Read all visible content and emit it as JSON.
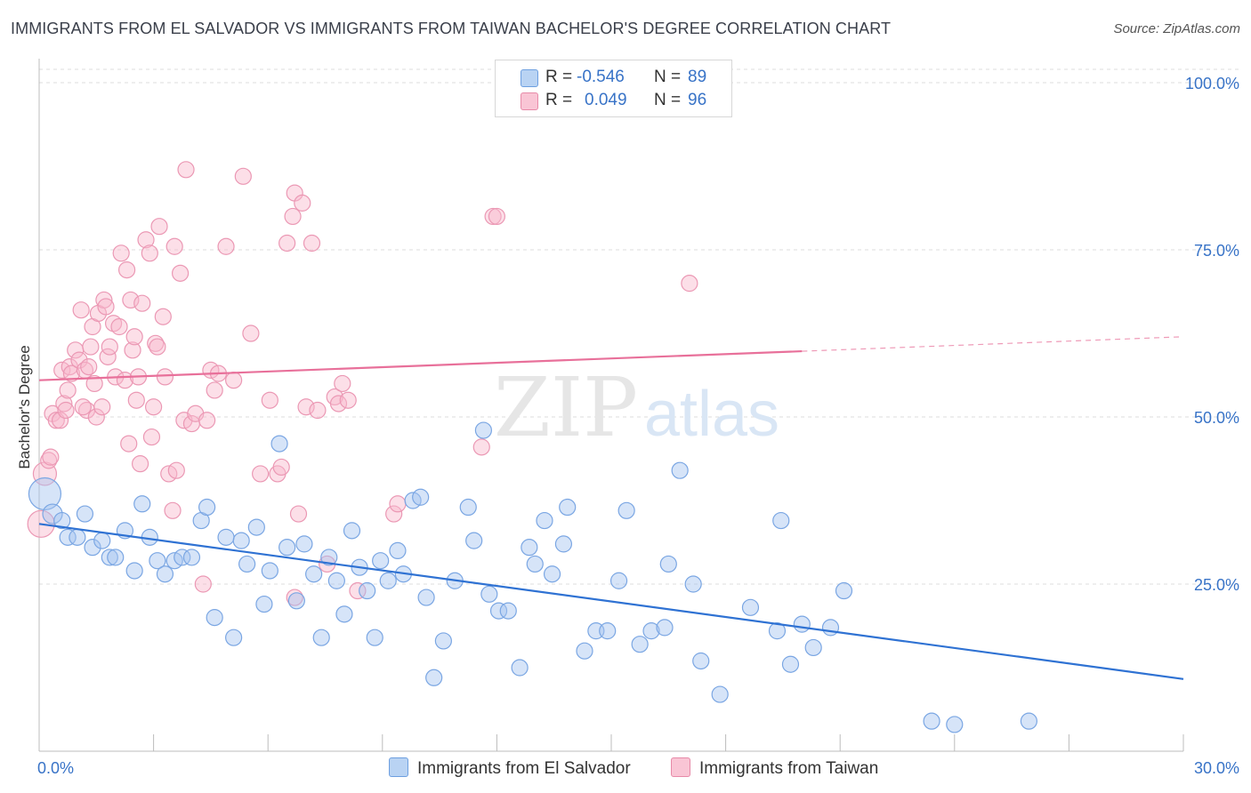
{
  "title": "IMMIGRANTS FROM EL SALVADOR VS IMMIGRANTS FROM TAIWAN BACHELOR'S DEGREE CORRELATION CHART",
  "source": "Source: ZipAtlas.com",
  "watermark": {
    "zip": "ZIP",
    "atlas": "atlas"
  },
  "legend": {
    "r_label": "R =",
    "n_label": "N =",
    "series": [
      {
        "name": "Immigrants from El Salvador",
        "r": "-0.546",
        "n": "89",
        "fill": "#b9d3f3",
        "stroke": "#6d9fe0"
      },
      {
        "name": "Immigrants from Taiwan",
        "r": "0.049",
        "n": "96",
        "fill": "#f9c5d5",
        "stroke": "#e78aa8"
      }
    ]
  },
  "colors": {
    "blue_point_fill": "rgba(164,196,240,0.45)",
    "blue_point_stroke": "#7aa6e3",
    "blue_line": "#2f72d3",
    "pink_point_fill": "rgba(248,183,203,0.45)",
    "pink_point_stroke": "#eb98b4",
    "pink_line": "#e8709a",
    "axis_text": "#3873c7",
    "grid": "#dcdcdc"
  },
  "chart_data": {
    "type": "scatter",
    "title": "IMMIGRANTS FROM EL SALVADOR VS IMMIGRANTS FROM TAIWAN BACHELOR'S DEGREE CORRELATION CHART",
    "xlabel": "",
    "ylabel": "Bachelor's Degree",
    "xlim": [
      0,
      30
    ],
    "ylim": [
      0,
      102
    ],
    "x_tick_labels": [
      {
        "value": 0,
        "label": "0.0%"
      },
      {
        "value": 30,
        "label": "30.0%"
      }
    ],
    "y_tick_labels": [
      {
        "value": 25,
        "label": "25.0%"
      },
      {
        "value": 50,
        "label": "50.0%"
      },
      {
        "value": 75,
        "label": "75.0%"
      },
      {
        "value": 100,
        "label": "100.0%"
      }
    ],
    "grid": true,
    "legend_position": "top-center",
    "series": [
      {
        "name": "Immigrants from El Salvador",
        "r": -0.546,
        "n": 89,
        "trend": {
          "x": [
            0,
            30
          ],
          "y": [
            34.0,
            10.8
          ],
          "solid_until": 30
        },
        "points": [
          [
            0.15,
            38.5,
            18
          ],
          [
            0.35,
            35.5,
            11
          ],
          [
            0.6,
            34.5,
            9
          ],
          [
            0.75,
            32.0,
            9
          ],
          [
            1.0,
            32.0,
            9
          ],
          [
            1.2,
            35.5,
            9
          ],
          [
            1.4,
            30.5,
            9
          ],
          [
            1.65,
            31.5,
            9
          ],
          [
            1.85,
            29.0,
            9
          ],
          [
            2.0,
            29.0,
            9
          ],
          [
            2.25,
            33.0,
            9
          ],
          [
            2.5,
            27.0,
            9
          ],
          [
            2.7,
            37.0,
            9
          ],
          [
            2.9,
            32.0,
            9
          ],
          [
            3.1,
            28.5,
            9
          ],
          [
            3.3,
            26.5,
            9
          ],
          [
            3.55,
            28.5,
            9
          ],
          [
            3.75,
            29.0,
            9
          ],
          [
            4.0,
            29.0,
            9
          ],
          [
            4.25,
            34.5,
            9
          ],
          [
            4.4,
            36.5,
            9
          ],
          [
            4.6,
            20.0,
            9
          ],
          [
            4.9,
            32.0,
            9
          ],
          [
            5.1,
            17.0,
            9
          ],
          [
            5.3,
            31.5,
            9
          ],
          [
            5.45,
            28.0,
            9
          ],
          [
            5.7,
            33.5,
            9
          ],
          [
            5.9,
            22.0,
            9
          ],
          [
            6.05,
            27.0,
            9
          ],
          [
            6.3,
            46.0,
            9
          ],
          [
            6.5,
            30.5,
            9
          ],
          [
            6.75,
            22.5,
            9
          ],
          [
            6.95,
            31.0,
            9
          ],
          [
            7.2,
            26.5,
            9
          ],
          [
            7.4,
            17.0,
            9
          ],
          [
            7.6,
            29.0,
            9
          ],
          [
            7.8,
            25.5,
            9
          ],
          [
            8.0,
            20.5,
            9
          ],
          [
            8.2,
            33.0,
            9
          ],
          [
            8.4,
            27.5,
            9
          ],
          [
            8.6,
            24.0,
            9
          ],
          [
            8.8,
            17.0,
            9
          ],
          [
            8.95,
            28.5,
            9
          ],
          [
            9.15,
            25.5,
            9
          ],
          [
            9.4,
            30.0,
            9
          ],
          [
            9.55,
            26.5,
            9
          ],
          [
            9.8,
            37.5,
            9
          ],
          [
            10.0,
            38.0,
            9
          ],
          [
            10.15,
            23.0,
            9
          ],
          [
            10.35,
            11.0,
            9
          ],
          [
            10.6,
            16.5,
            9
          ],
          [
            10.9,
            25.5,
            9
          ],
          [
            11.25,
            36.5,
            9
          ],
          [
            11.4,
            31.5,
            9
          ],
          [
            11.65,
            48.0,
            9
          ],
          [
            11.8,
            23.5,
            9
          ],
          [
            12.05,
            21.0,
            9
          ],
          [
            12.3,
            21.0,
            9
          ],
          [
            12.6,
            12.5,
            9
          ],
          [
            12.85,
            30.5,
            9
          ],
          [
            13.0,
            28.0,
            9
          ],
          [
            13.25,
            34.5,
            9
          ],
          [
            13.45,
            26.5,
            9
          ],
          [
            13.75,
            31.0,
            9
          ],
          [
            13.85,
            36.5,
            9
          ],
          [
            14.3,
            15.0,
            9
          ],
          [
            14.6,
            18.0,
            9
          ],
          [
            14.9,
            18.0,
            9
          ],
          [
            15.2,
            25.5,
            9
          ],
          [
            15.4,
            36.0,
            9
          ],
          [
            15.75,
            16.0,
            9
          ],
          [
            16.05,
            18.0,
            9
          ],
          [
            16.4,
            18.5,
            9
          ],
          [
            16.5,
            28.0,
            9
          ],
          [
            16.8,
            42.0,
            9
          ],
          [
            17.15,
            25.0,
            9
          ],
          [
            17.35,
            13.5,
            9
          ],
          [
            17.85,
            8.5,
            9
          ],
          [
            18.65,
            21.5,
            9
          ],
          [
            19.35,
            18.0,
            9
          ],
          [
            19.45,
            34.5,
            9
          ],
          [
            19.7,
            13.0,
            9
          ],
          [
            20.0,
            19.0,
            9
          ],
          [
            20.3,
            15.5,
            9
          ],
          [
            20.75,
            18.5,
            9
          ],
          [
            21.1,
            24.0,
            9
          ],
          [
            23.4,
            4.5,
            9
          ],
          [
            24.0,
            4.0,
            9
          ],
          [
            25.95,
            4.5,
            9
          ]
        ]
      },
      {
        "name": "Immigrants from Taiwan",
        "r": 0.049,
        "n": 96,
        "trend": {
          "x": [
            0,
            30
          ],
          "y": [
            55.5,
            62.0
          ],
          "solid_until": 20
        },
        "points": [
          [
            0.05,
            34.0,
            15
          ],
          [
            0.15,
            41.5,
            13
          ],
          [
            0.25,
            43.5,
            9
          ],
          [
            0.3,
            44.0,
            9
          ],
          [
            0.35,
            50.5,
            9
          ],
          [
            0.45,
            49.5,
            9
          ],
          [
            0.55,
            49.5,
            9
          ],
          [
            0.65,
            52.0,
            9
          ],
          [
            0.6,
            57.0,
            9
          ],
          [
            0.75,
            54.0,
            9
          ],
          [
            0.8,
            57.5,
            9
          ],
          [
            0.85,
            56.5,
            9
          ],
          [
            0.95,
            60.0,
            9
          ],
          [
            1.05,
            58.5,
            9
          ],
          [
            1.1,
            66.0,
            9
          ],
          [
            1.2,
            57.0,
            9
          ],
          [
            1.25,
            51.0,
            9
          ],
          [
            1.3,
            57.5,
            9
          ],
          [
            1.35,
            60.5,
            9
          ],
          [
            1.4,
            63.5,
            9
          ],
          [
            1.45,
            55.0,
            9
          ],
          [
            1.5,
            50.0,
            9
          ],
          [
            1.55,
            65.5,
            9
          ],
          [
            1.65,
            51.5,
            9
          ],
          [
            1.7,
            67.5,
            9
          ],
          [
            1.75,
            66.5,
            9
          ],
          [
            1.8,
            59.0,
            9
          ],
          [
            1.85,
            60.5,
            9
          ],
          [
            1.95,
            64.0,
            9
          ],
          [
            2.0,
            56.0,
            9
          ],
          [
            2.1,
            63.5,
            9
          ],
          [
            2.15,
            74.5,
            9
          ],
          [
            2.25,
            55.5,
            9
          ],
          [
            2.3,
            72.0,
            9
          ],
          [
            2.35,
            46.0,
            9
          ],
          [
            2.4,
            67.5,
            9
          ],
          [
            2.45,
            60.0,
            9
          ],
          [
            2.5,
            62.0,
            9
          ],
          [
            2.55,
            52.5,
            9
          ],
          [
            2.6,
            56.0,
            9
          ],
          [
            2.65,
            43.0,
            9
          ],
          [
            2.7,
            67.0,
            9
          ],
          [
            2.8,
            76.5,
            9
          ],
          [
            2.9,
            74.5,
            9
          ],
          [
            2.95,
            47.0,
            9
          ],
          [
            3.0,
            51.5,
            9
          ],
          [
            3.05,
            61.0,
            9
          ],
          [
            3.1,
            60.5,
            9
          ],
          [
            3.15,
            78.5,
            9
          ],
          [
            3.25,
            65.0,
            9
          ],
          [
            3.3,
            56.0,
            9
          ],
          [
            3.4,
            41.5,
            9
          ],
          [
            3.5,
            36.0,
            9
          ],
          [
            3.55,
            75.5,
            9
          ],
          [
            3.7,
            71.5,
            9
          ],
          [
            3.8,
            49.5,
            9
          ],
          [
            3.85,
            87.0,
            9
          ],
          [
            4.0,
            49.0,
            9
          ],
          [
            4.1,
            50.5,
            9
          ],
          [
            4.3,
            25.0,
            9
          ],
          [
            4.4,
            49.5,
            9
          ],
          [
            4.5,
            57.0,
            9
          ],
          [
            4.6,
            54.0,
            9
          ],
          [
            4.7,
            56.5,
            9
          ],
          [
            4.9,
            75.5,
            9
          ],
          [
            5.1,
            55.5,
            9
          ],
          [
            5.35,
            86.0,
            9
          ],
          [
            5.55,
            62.5,
            9
          ],
          [
            5.8,
            41.5,
            9
          ],
          [
            6.05,
            52.5,
            9
          ],
          [
            6.25,
            41.5,
            9
          ],
          [
            6.35,
            42.5,
            9
          ],
          [
            6.5,
            76.0,
            9
          ],
          [
            6.65,
            80.0,
            9
          ],
          [
            6.7,
            83.5,
            9
          ],
          [
            6.9,
            82.0,
            9
          ],
          [
            6.8,
            35.5,
            9
          ],
          [
            7.0,
            51.5,
            9
          ],
          [
            7.15,
            76.0,
            9
          ],
          [
            7.3,
            51.0,
            9
          ],
          [
            7.55,
            28.0,
            9
          ],
          [
            7.75,
            53.0,
            9
          ],
          [
            7.85,
            52.0,
            9
          ],
          [
            7.95,
            55.0,
            9
          ],
          [
            8.1,
            52.5,
            9
          ],
          [
            8.35,
            24.0,
            9
          ],
          [
            6.7,
            23.0,
            9
          ],
          [
            9.3,
            35.5,
            9
          ],
          [
            9.4,
            37.0,
            9
          ],
          [
            11.6,
            45.5,
            9
          ],
          [
            11.9,
            80.0,
            9
          ],
          [
            12.0,
            80.0,
            9
          ],
          [
            17.05,
            70.0,
            9
          ],
          [
            0.7,
            51.0,
            9
          ],
          [
            1.15,
            51.5,
            9
          ],
          [
            3.6,
            42.0,
            9
          ]
        ]
      }
    ]
  }
}
